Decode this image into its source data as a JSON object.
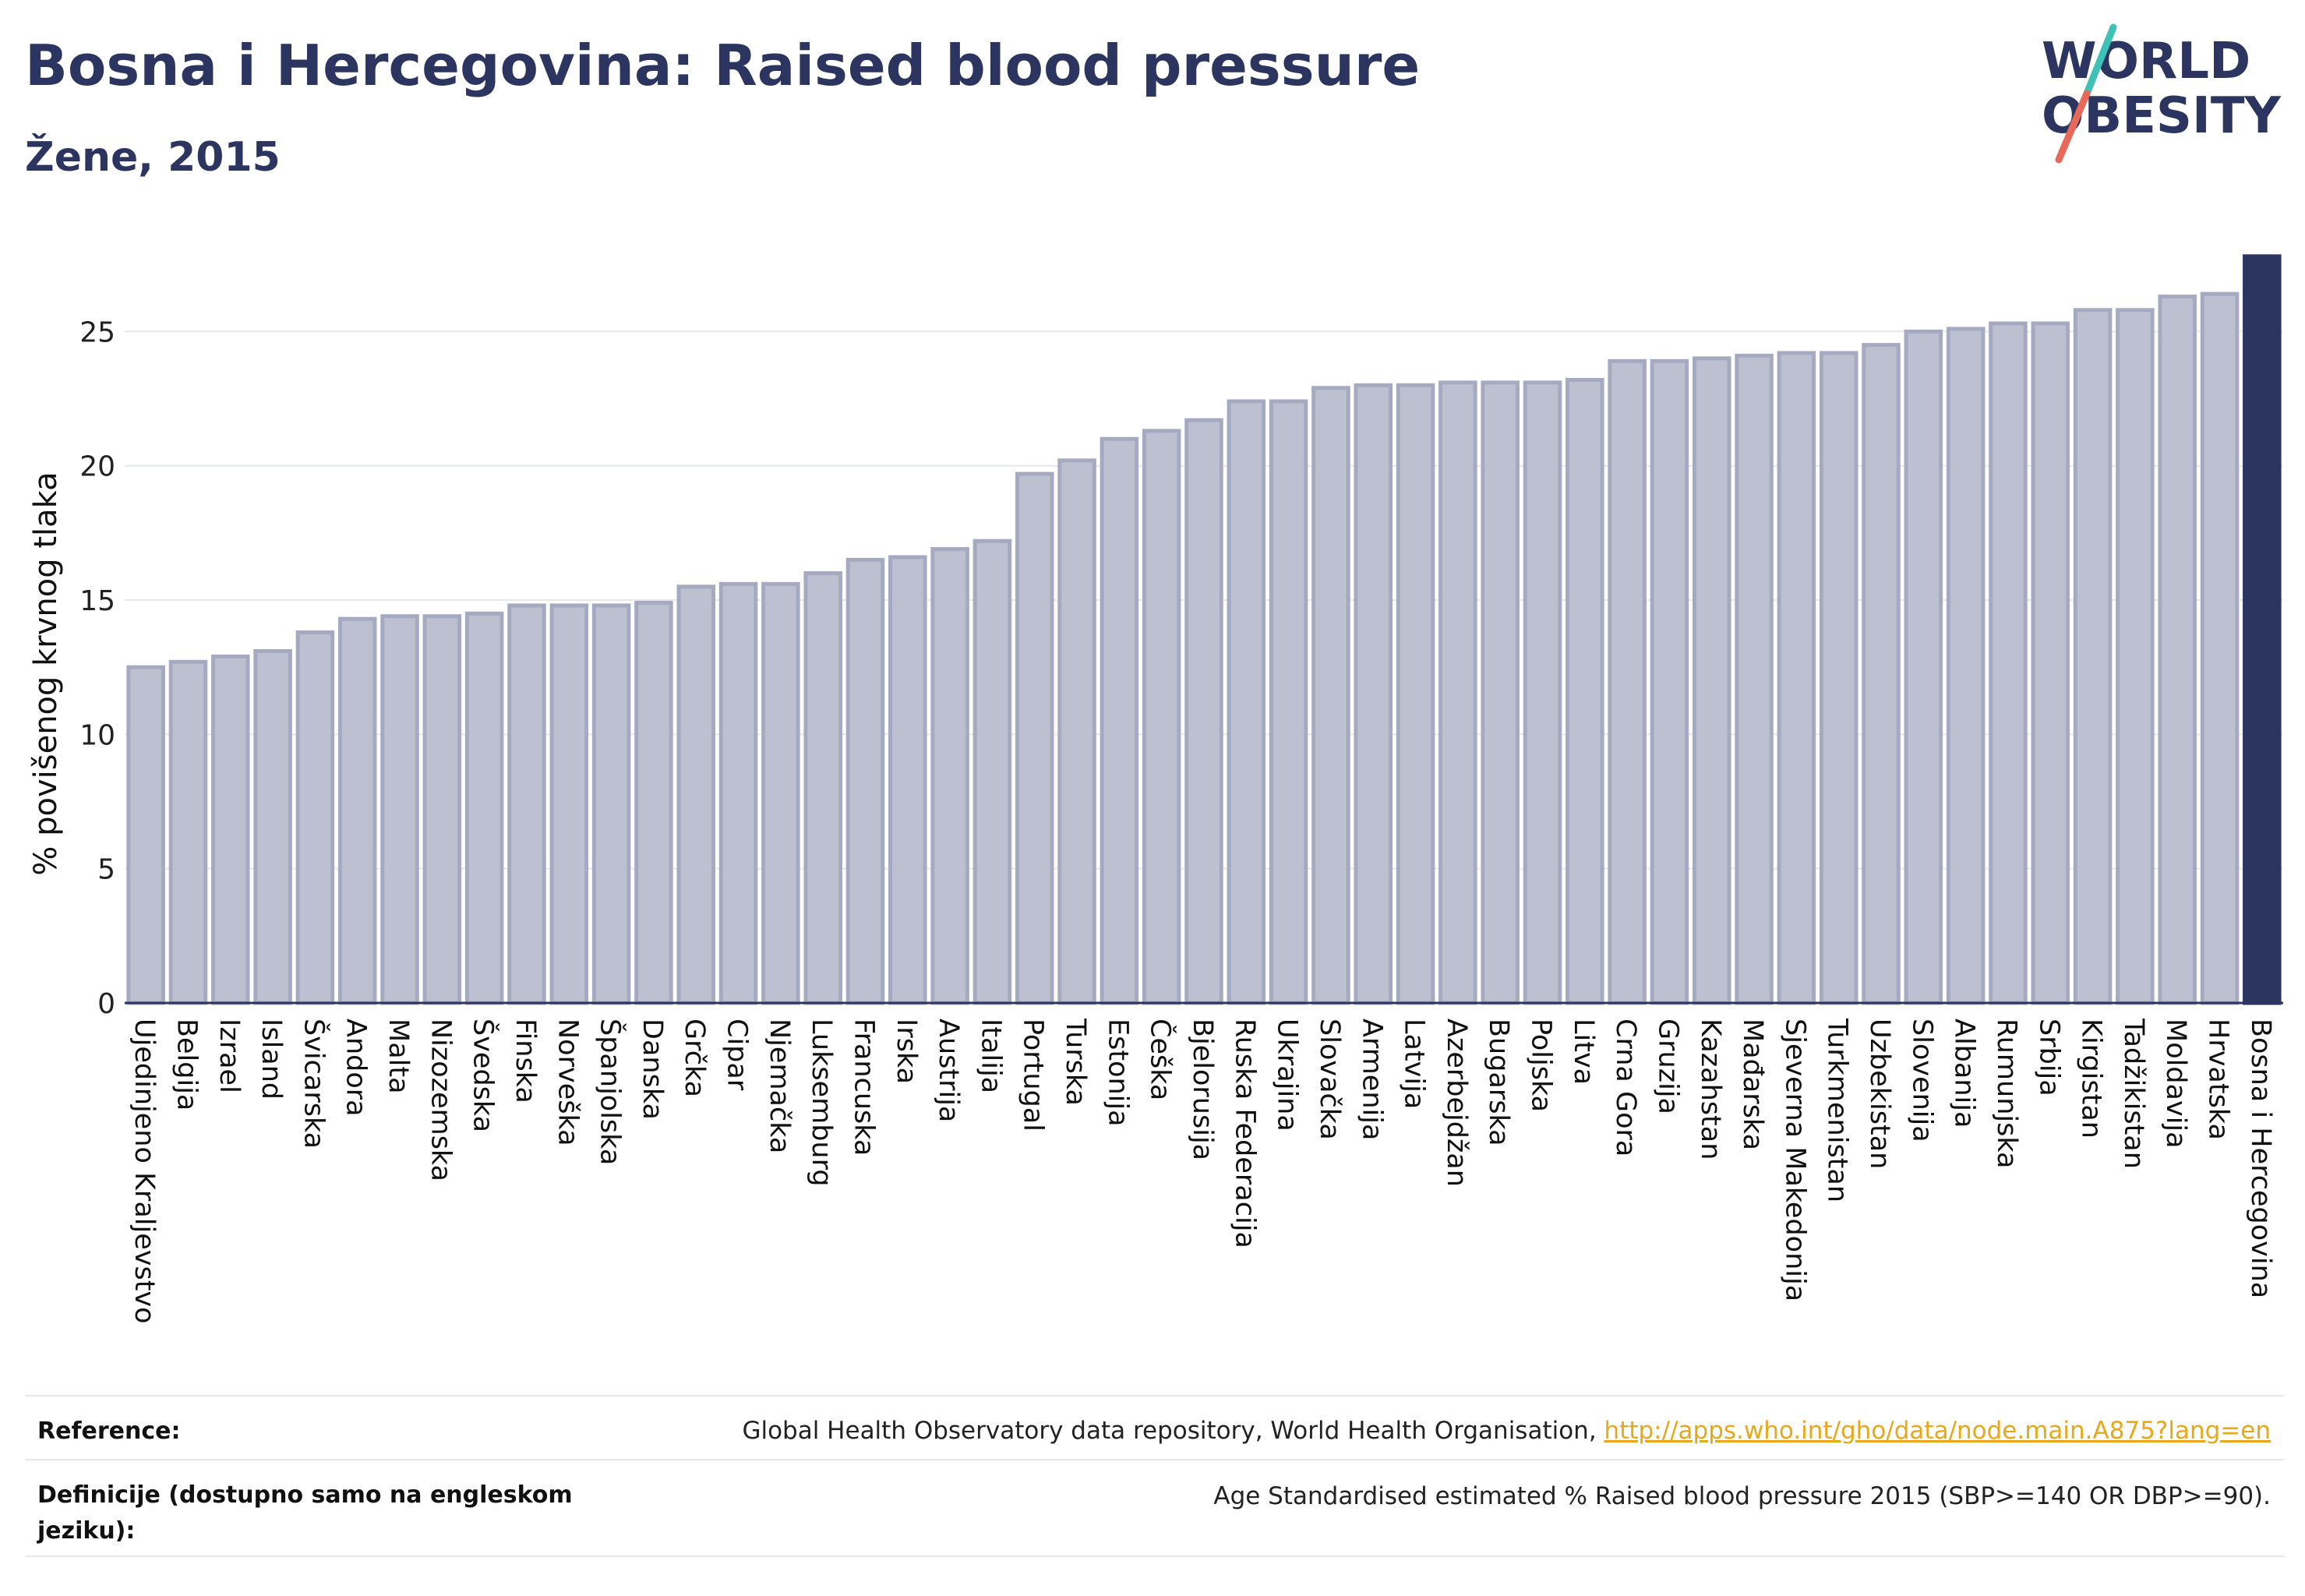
{
  "header": {
    "title": "Bosna i Hercegovina: Raised blood pressure",
    "subtitle": "Žene, 2015"
  },
  "logo": {
    "line1": "WORLD",
    "line2": "OBESITY",
    "colors": {
      "text": "#2c3560",
      "slash_teal": "#3ec1b6",
      "slash_red": "#e8685a"
    }
  },
  "chart_data": {
    "type": "bar",
    "ylabel": "% povišenog krvnog tlaka",
    "ylim": [
      0,
      28
    ],
    "yticks": [
      0,
      5,
      10,
      15,
      20,
      25
    ],
    "grid": true,
    "colors": {
      "bar": "#bdc0d0",
      "bar_stroke": "#a6aac0",
      "highlight": "#2c3560"
    },
    "highlight": "Bosna i Hercegovina",
    "categories": [
      "Ujedinjeno Kraljevstvo",
      "Belgija",
      "Izrael",
      "Island",
      "Švicarska",
      "Andora",
      "Malta",
      "Nizozemska",
      "Švedska",
      "Finska",
      "Norveška",
      "Španjolska",
      "Danska",
      "Grčka",
      "Cipar",
      "Njemačka",
      "Luksemburg",
      "Francuska",
      "Irska",
      "Austrija",
      "Italija",
      "Portugal",
      "Turska",
      "Estonija",
      "Češka",
      "Bjelorusija",
      "Ruska Federacija",
      "Ukrajina",
      "Slovačka",
      "Armenija",
      "Latvija",
      "Azerbejdžan",
      "Bugarska",
      "Poljska",
      "Litva",
      "Crna Gora",
      "Gruzija",
      "Kazahstan",
      "Mađarska",
      "Sjeverna Makedonija",
      "Turkmenistan",
      "Uzbekistan",
      "Slovenija",
      "Albanija",
      "Rumunjska",
      "Srbija",
      "Kirgistan",
      "Tadžikistan",
      "Moldavija",
      "Hrvatska",
      "Bosna i Hercegovina"
    ],
    "values": [
      12.5,
      12.7,
      12.9,
      13.1,
      13.8,
      14.3,
      14.4,
      14.4,
      14.5,
      14.8,
      14.8,
      14.8,
      14.9,
      15.5,
      15.6,
      15.6,
      16.0,
      16.5,
      16.6,
      16.9,
      17.2,
      19.7,
      20.2,
      21.0,
      21.3,
      21.7,
      22.4,
      22.4,
      22.9,
      23.0,
      23.0,
      23.1,
      23.1,
      23.1,
      23.2,
      23.9,
      23.9,
      24.0,
      24.1,
      24.2,
      24.2,
      24.5,
      25.0,
      25.1,
      25.3,
      25.3,
      25.8,
      25.8,
      26.3,
      26.4,
      27.8
    ]
  },
  "footer": {
    "reference_label": "Reference:",
    "reference_text": "Global Health Observatory data repository, World Health Organisation, ",
    "reference_link": "http://apps.who.int/gho/data/node.main.A875?lang=en",
    "definition_label": "Definicije (dostupno samo na engleskom jeziku):",
    "definition_text": "Age Standardised estimated % Raised blood pressure 2015 (SBP>=140 OR DBP>=90)."
  }
}
